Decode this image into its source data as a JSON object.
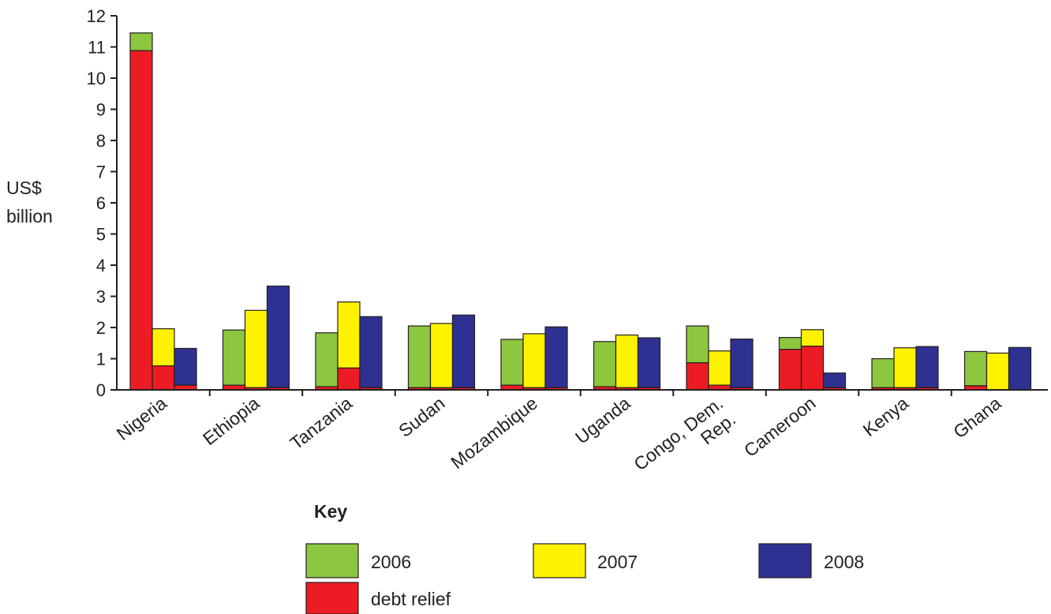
{
  "chart_data": {
    "type": "bar",
    "title": "",
    "ylabel_lines": [
      "US$",
      "billion"
    ],
    "xlabel": "",
    "ylim": [
      0,
      12
    ],
    "yticks": [
      0,
      1,
      2,
      3,
      4,
      5,
      6,
      7,
      8,
      9,
      10,
      11,
      12
    ],
    "grid": false,
    "categories": [
      "Nigeria",
      "Ethiopia",
      "Tanzania",
      "Sudan",
      "Mozambique",
      "Uganda",
      "Congo, Dem. Rep.",
      "Cameroon",
      "Kenya",
      "Ghana"
    ],
    "category_label_lines": [
      [
        "Nigeria"
      ],
      [
        "Ethiopia"
      ],
      [
        "Tanzania"
      ],
      [
        "Sudan"
      ],
      [
        "Mozambique"
      ],
      [
        "Uganda"
      ],
      [
        "Congo, Dem.",
        "Rep."
      ],
      [
        "Cameroon"
      ],
      [
        "Kenya"
      ],
      [
        "Ghana"
      ]
    ],
    "series": [
      {
        "name": "2006",
        "color": "#8dc63f",
        "total": [
          11.45,
          1.92,
          1.83,
          2.05,
          1.62,
          1.55,
          2.05,
          1.68,
          1.0,
          1.23
        ],
        "debt_relief": [
          10.88,
          0.15,
          0.1,
          0.07,
          0.15,
          0.1,
          0.87,
          1.3,
          0.07,
          0.13
        ]
      },
      {
        "name": "2007",
        "color": "#fff200",
        "total": [
          1.96,
          2.55,
          2.82,
          2.13,
          1.8,
          1.76,
          1.25,
          1.93,
          1.35,
          1.18
        ],
        "debt_relief": [
          0.77,
          0.07,
          0.7,
          0.07,
          0.07,
          0.07,
          0.15,
          1.4,
          0.07,
          0.0
        ]
      },
      {
        "name": "2008",
        "color": "#2e3192",
        "total": [
          1.33,
          3.33,
          2.35,
          2.4,
          2.02,
          1.67,
          1.63,
          0.54,
          1.39,
          1.36
        ],
        "debt_relief": [
          0.15,
          0.07,
          0.07,
          0.07,
          0.07,
          0.07,
          0.07,
          0.07,
          0.07,
          0.0
        ]
      }
    ],
    "debt_relief_color": "#ed1c24",
    "legend": {
      "title": "Key",
      "placement": "bottom-center",
      "entries": [
        {
          "label": "2006",
          "color": "#8dc63f"
        },
        {
          "label": "2007",
          "color": "#fff200"
        },
        {
          "label": "2008",
          "color": "#2e3192"
        },
        {
          "label": "debt relief",
          "color": "#ed1c24"
        }
      ]
    }
  }
}
